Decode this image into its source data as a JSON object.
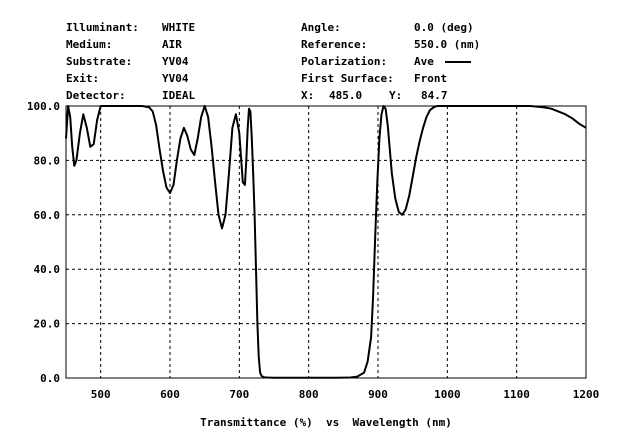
{
  "header": {
    "left": [
      {
        "label": "Illuminant:",
        "value": "WHITE"
      },
      {
        "label": "Medium:",
        "value": "AIR"
      },
      {
        "label": "Substrate:",
        "value": "YV04"
      },
      {
        "label": "Exit:",
        "value": "YV04"
      },
      {
        "label": "Detector:",
        "value": "IDEAL"
      }
    ],
    "right": [
      {
        "label": "Angle:",
        "value": "0.0 (deg)"
      },
      {
        "label": "Reference:",
        "value": "550.0 (nm)"
      },
      {
        "label": "Polarization:",
        "value": "Ave"
      },
      {
        "label": "First Surface:",
        "value": "Front"
      }
    ],
    "cursor": {
      "x_label": "X:",
      "x_value": "485.0",
      "y_label": "Y:",
      "y_value": "84.7"
    }
  },
  "chart_data": {
    "type": "line",
    "xlabel": "Transmittance (%)  vs  Wavelength (nm)",
    "ylabel": "",
    "xlim": [
      450,
      1200
    ],
    "ylim": [
      0,
      100
    ],
    "x_ticks": [
      500,
      600,
      700,
      800,
      900,
      1000,
      1100,
      1200
    ],
    "y_ticks": [
      "0.0",
      "20.0",
      "40.0",
      "60.0",
      "80.0",
      "100.0"
    ],
    "grid": true,
    "series": [
      {
        "name": "Ave",
        "color": "#000000",
        "x": [
          450,
          453,
          456,
          459,
          462,
          465,
          470,
          475,
          480,
          485,
          490,
          495,
          500,
          520,
          540,
          560,
          570,
          575,
          580,
          585,
          590,
          595,
          600,
          605,
          610,
          615,
          620,
          625,
          630,
          635,
          640,
          645,
          650,
          655,
          660,
          665,
          670,
          675,
          680,
          685,
          690,
          695,
          700,
          705,
          708,
          710,
          712,
          714,
          716,
          718,
          720,
          722,
          724,
          726,
          728,
          730,
          732,
          735,
          740,
          750,
          760,
          780,
          800,
          820,
          840,
          860,
          870,
          880,
          885,
          890,
          893,
          896,
          899,
          902,
          905,
          908,
          911,
          914,
          917,
          920,
          925,
          930,
          935,
          940,
          945,
          950,
          955,
          960,
          965,
          970,
          975,
          980,
          985,
          990,
          1000,
          1050,
          1100,
          1120,
          1140,
          1150,
          1160,
          1170,
          1180,
          1190,
          1200
        ],
        "y": [
          88,
          100,
          96,
          85,
          78,
          80,
          90,
          97,
          92,
          85,
          86,
          95,
          100,
          100,
          100,
          100,
          99.5,
          98,
          93,
          84,
          76,
          70,
          68,
          71,
          80,
          88,
          92,
          89,
          84,
          82,
          88,
          96,
          100,
          96,
          85,
          72,
          60,
          55,
          60,
          75,
          92,
          97,
          90,
          72,
          71,
          80,
          92,
          99,
          98,
          88,
          75,
          60,
          40,
          20,
          8,
          2,
          0.8,
          0.3,
          0.2,
          0.1,
          0.1,
          0.1,
          0.1,
          0.1,
          0.1,
          0.2,
          0.5,
          2,
          6,
          15,
          30,
          52,
          72,
          88,
          97,
          100,
          99,
          93,
          84,
          75,
          66,
          61,
          60,
          62,
          67,
          74,
          81,
          87,
          92,
          96,
          98.5,
          99.5,
          100,
          100,
          100,
          100,
          100,
          100,
          99.5,
          99,
          98,
          97,
          95.5,
          93.5,
          92
        ]
      }
    ]
  }
}
